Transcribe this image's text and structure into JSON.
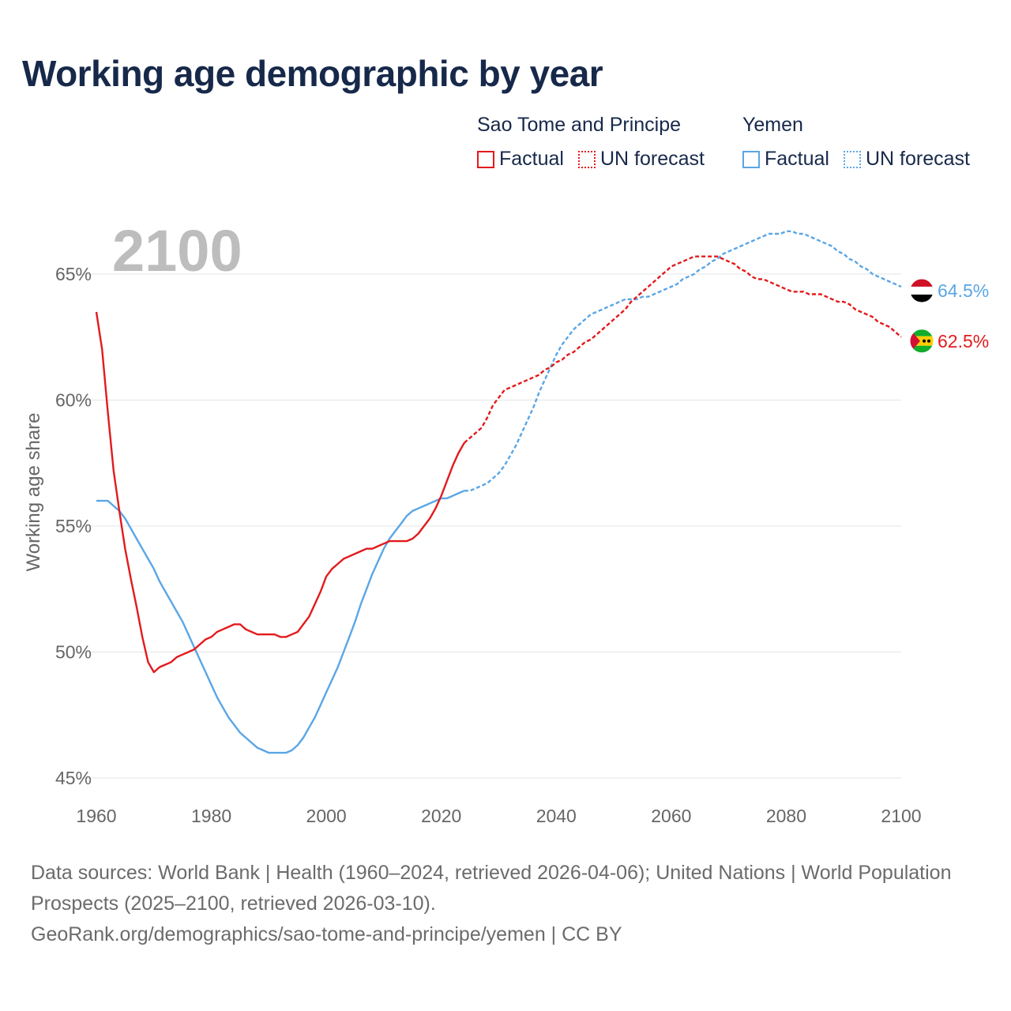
{
  "title": "Working age demographic by year",
  "legend": {
    "groups": [
      {
        "name": "Sao Tome and Principe",
        "factual_label": "Factual",
        "forecast_label": "UN forecast",
        "color": "#e31a1c"
      },
      {
        "name": "Yemen",
        "factual_label": "Factual",
        "forecast_label": "UN forecast",
        "color": "#5aa6e6"
      }
    ]
  },
  "footer": {
    "sources": "Data sources: World Bank | Health (1960–2024, retrieved 2026-04-06); United Nations | World Population Prospects (2025–2100, retrieved 2026-03-10).",
    "url": "GeoRank.org/demographics/sao-tome-and-principe/yemen | CC BY"
  },
  "chart_data": {
    "type": "line",
    "year_watermark": "2100",
    "ylabel": "Working age share",
    "xlabel": "",
    "xlim": [
      1960,
      2100
    ],
    "ylim": [
      45,
      67
    ],
    "x_ticks": [
      1960,
      1980,
      2000,
      2020,
      2040,
      2060,
      2080,
      2100
    ],
    "y_ticks": [
      45,
      50,
      55,
      60,
      65
    ],
    "y_tick_labels": [
      "45%",
      "50%",
      "55%",
      "60%",
      "65%"
    ],
    "grid": true,
    "forecast_start": 2024,
    "series": [
      {
        "name": "Sao Tome and Principe",
        "color": "#e31a1c",
        "end_label": "62.5%",
        "flag": "sao-tome-flag-icon",
        "points": [
          [
            1960,
            63.5
          ],
          [
            1961,
            62.0
          ],
          [
            1962,
            59.5
          ],
          [
            1963,
            57.2
          ],
          [
            1964,
            55.6
          ],
          [
            1965,
            54.1
          ],
          [
            1966,
            52.9
          ],
          [
            1967,
            51.8
          ],
          [
            1968,
            50.6
          ],
          [
            1969,
            49.6
          ],
          [
            1970,
            49.2
          ],
          [
            1971,
            49.4
          ],
          [
            1972,
            49.5
          ],
          [
            1973,
            49.6
          ],
          [
            1974,
            49.8
          ],
          [
            1975,
            49.9
          ],
          [
            1976,
            50.0
          ],
          [
            1977,
            50.1
          ],
          [
            1978,
            50.3
          ],
          [
            1979,
            50.5
          ],
          [
            1980,
            50.6
          ],
          [
            1981,
            50.8
          ],
          [
            1982,
            50.9
          ],
          [
            1983,
            51.0
          ],
          [
            1984,
            51.1
          ],
          [
            1985,
            51.1
          ],
          [
            1986,
            50.9
          ],
          [
            1987,
            50.8
          ],
          [
            1988,
            50.7
          ],
          [
            1989,
            50.7
          ],
          [
            1990,
            50.7
          ],
          [
            1991,
            50.7
          ],
          [
            1992,
            50.6
          ],
          [
            1993,
            50.6
          ],
          [
            1994,
            50.7
          ],
          [
            1995,
            50.8
          ],
          [
            1996,
            51.1
          ],
          [
            1997,
            51.4
          ],
          [
            1998,
            51.9
          ],
          [
            1999,
            52.4
          ],
          [
            2000,
            53.0
          ],
          [
            2001,
            53.3
          ],
          [
            2002,
            53.5
          ],
          [
            2003,
            53.7
          ],
          [
            2004,
            53.8
          ],
          [
            2005,
            53.9
          ],
          [
            2006,
            54.0
          ],
          [
            2007,
            54.1
          ],
          [
            2008,
            54.1
          ],
          [
            2009,
            54.2
          ],
          [
            2010,
            54.3
          ],
          [
            2011,
            54.4
          ],
          [
            2012,
            54.4
          ],
          [
            2013,
            54.4
          ],
          [
            2014,
            54.4
          ],
          [
            2015,
            54.5
          ],
          [
            2016,
            54.7
          ],
          [
            2017,
            55.0
          ],
          [
            2018,
            55.3
          ],
          [
            2019,
            55.7
          ],
          [
            2020,
            56.2
          ],
          [
            2021,
            56.8
          ],
          [
            2022,
            57.4
          ],
          [
            2023,
            57.9
          ],
          [
            2024,
            58.3
          ],
          [
            2025,
            58.5
          ],
          [
            2026,
            58.7
          ],
          [
            2027,
            58.9
          ],
          [
            2028,
            59.3
          ],
          [
            2029,
            59.8
          ],
          [
            2030,
            60.1
          ],
          [
            2031,
            60.4
          ],
          [
            2032,
            60.5
          ],
          [
            2033,
            60.6
          ],
          [
            2034,
            60.7
          ],
          [
            2035,
            60.8
          ],
          [
            2036,
            60.9
          ],
          [
            2037,
            61.0
          ],
          [
            2038,
            61.2
          ],
          [
            2039,
            61.3
          ],
          [
            2040,
            61.5
          ],
          [
            2041,
            61.6
          ],
          [
            2042,
            61.8
          ],
          [
            2043,
            61.9
          ],
          [
            2044,
            62.1
          ],
          [
            2045,
            62.3
          ],
          [
            2046,
            62.4
          ],
          [
            2047,
            62.6
          ],
          [
            2048,
            62.8
          ],
          [
            2049,
            63.0
          ],
          [
            2050,
            63.2
          ],
          [
            2051,
            63.4
          ],
          [
            2052,
            63.6
          ],
          [
            2053,
            63.9
          ],
          [
            2054,
            64.1
          ],
          [
            2055,
            64.3
          ],
          [
            2056,
            64.5
          ],
          [
            2057,
            64.7
          ],
          [
            2058,
            64.9
          ],
          [
            2059,
            65.1
          ],
          [
            2060,
            65.3
          ],
          [
            2061,
            65.4
          ],
          [
            2062,
            65.5
          ],
          [
            2063,
            65.6
          ],
          [
            2064,
            65.7
          ],
          [
            2065,
            65.7
          ],
          [
            2066,
            65.7
          ],
          [
            2067,
            65.7
          ],
          [
            2068,
            65.7
          ],
          [
            2069,
            65.6
          ],
          [
            2070,
            65.5
          ],
          [
            2071,
            65.4
          ],
          [
            2072,
            65.2
          ],
          [
            2073,
            65.1
          ],
          [
            2074,
            64.9
          ],
          [
            2075,
            64.8
          ],
          [
            2076,
            64.8
          ],
          [
            2077,
            64.7
          ],
          [
            2078,
            64.6
          ],
          [
            2079,
            64.5
          ],
          [
            2080,
            64.4
          ],
          [
            2081,
            64.3
          ],
          [
            2082,
            64.3
          ],
          [
            2083,
            64.3
          ],
          [
            2084,
            64.2
          ],
          [
            2085,
            64.2
          ],
          [
            2086,
            64.2
          ],
          [
            2087,
            64.1
          ],
          [
            2088,
            64.0
          ],
          [
            2089,
            63.9
          ],
          [
            2090,
            63.9
          ],
          [
            2091,
            63.8
          ],
          [
            2092,
            63.6
          ],
          [
            2093,
            63.5
          ],
          [
            2094,
            63.4
          ],
          [
            2095,
            63.3
          ],
          [
            2096,
            63.1
          ],
          [
            2097,
            63.0
          ],
          [
            2098,
            62.9
          ],
          [
            2099,
            62.7
          ],
          [
            2100,
            62.5
          ]
        ]
      },
      {
        "name": "Yemen",
        "color": "#5aa6e6",
        "end_label": "64.5%",
        "flag": "yemen-flag-icon",
        "points": [
          [
            1960,
            56.0
          ],
          [
            1961,
            56.0
          ],
          [
            1962,
            56.0
          ],
          [
            1963,
            55.8
          ],
          [
            1964,
            55.6
          ],
          [
            1965,
            55.3
          ],
          [
            1966,
            54.9
          ],
          [
            1967,
            54.5
          ],
          [
            1968,
            54.1
          ],
          [
            1969,
            53.7
          ],
          [
            1970,
            53.3
          ],
          [
            1971,
            52.8
          ],
          [
            1972,
            52.4
          ],
          [
            1973,
            52.0
          ],
          [
            1974,
            51.6
          ],
          [
            1975,
            51.2
          ],
          [
            1976,
            50.7
          ],
          [
            1977,
            50.2
          ],
          [
            1978,
            49.7
          ],
          [
            1979,
            49.2
          ],
          [
            1980,
            48.7
          ],
          [
            1981,
            48.2
          ],
          [
            1982,
            47.8
          ],
          [
            1983,
            47.4
          ],
          [
            1984,
            47.1
          ],
          [
            1985,
            46.8
          ],
          [
            1986,
            46.6
          ],
          [
            1987,
            46.4
          ],
          [
            1988,
            46.2
          ],
          [
            1989,
            46.1
          ],
          [
            1990,
            46.0
          ],
          [
            1991,
            46.0
          ],
          [
            1992,
            46.0
          ],
          [
            1993,
            46.0
          ],
          [
            1994,
            46.1
          ],
          [
            1995,
            46.3
          ],
          [
            1996,
            46.6
          ],
          [
            1997,
            47.0
          ],
          [
            1998,
            47.4
          ],
          [
            1999,
            47.9
          ],
          [
            2000,
            48.4
          ],
          [
            2001,
            48.9
          ],
          [
            2002,
            49.4
          ],
          [
            2003,
            50.0
          ],
          [
            2004,
            50.6
          ],
          [
            2005,
            51.2
          ],
          [
            2006,
            51.9
          ],
          [
            2007,
            52.5
          ],
          [
            2008,
            53.1
          ],
          [
            2009,
            53.6
          ],
          [
            2010,
            54.1
          ],
          [
            2011,
            54.5
          ],
          [
            2012,
            54.8
          ],
          [
            2013,
            55.1
          ],
          [
            2014,
            55.4
          ],
          [
            2015,
            55.6
          ],
          [
            2016,
            55.7
          ],
          [
            2017,
            55.8
          ],
          [
            2018,
            55.9
          ],
          [
            2019,
            56.0
          ],
          [
            2020,
            56.1
          ],
          [
            2021,
            56.1
          ],
          [
            2022,
            56.2
          ],
          [
            2023,
            56.3
          ],
          [
            2024,
            56.4
          ],
          [
            2025,
            56.4
          ],
          [
            2026,
            56.5
          ],
          [
            2027,
            56.6
          ],
          [
            2028,
            56.7
          ],
          [
            2029,
            56.9
          ],
          [
            2030,
            57.1
          ],
          [
            2031,
            57.4
          ],
          [
            2032,
            57.8
          ],
          [
            2033,
            58.2
          ],
          [
            2034,
            58.7
          ],
          [
            2035,
            59.2
          ],
          [
            2036,
            59.7
          ],
          [
            2037,
            60.3
          ],
          [
            2038,
            60.8
          ],
          [
            2039,
            61.3
          ],
          [
            2040,
            61.8
          ],
          [
            2041,
            62.2
          ],
          [
            2042,
            62.5
          ],
          [
            2043,
            62.8
          ],
          [
            2044,
            63.0
          ],
          [
            2045,
            63.2
          ],
          [
            2046,
            63.4
          ],
          [
            2047,
            63.5
          ],
          [
            2048,
            63.6
          ],
          [
            2049,
            63.7
          ],
          [
            2050,
            63.8
          ],
          [
            2051,
            63.9
          ],
          [
            2052,
            64.0
          ],
          [
            2053,
            64.0
          ],
          [
            2054,
            64.0
          ],
          [
            2055,
            64.1
          ],
          [
            2056,
            64.1
          ],
          [
            2057,
            64.2
          ],
          [
            2058,
            64.3
          ],
          [
            2059,
            64.4
          ],
          [
            2060,
            64.5
          ],
          [
            2061,
            64.6
          ],
          [
            2062,
            64.8
          ],
          [
            2063,
            64.9
          ],
          [
            2064,
            65.0
          ],
          [
            2065,
            65.2
          ],
          [
            2066,
            65.3
          ],
          [
            2067,
            65.5
          ],
          [
            2068,
            65.6
          ],
          [
            2069,
            65.8
          ],
          [
            2070,
            65.9
          ],
          [
            2071,
            66.0
          ],
          [
            2072,
            66.1
          ],
          [
            2073,
            66.2
          ],
          [
            2074,
            66.3
          ],
          [
            2075,
            66.4
          ],
          [
            2076,
            66.5
          ],
          [
            2077,
            66.6
          ],
          [
            2078,
            66.6
          ],
          [
            2079,
            66.6
          ],
          [
            2080,
            66.7
          ],
          [
            2081,
            66.7
          ],
          [
            2082,
            66.6
          ],
          [
            2083,
            66.6
          ],
          [
            2084,
            66.5
          ],
          [
            2085,
            66.4
          ],
          [
            2086,
            66.3
          ],
          [
            2087,
            66.2
          ],
          [
            2088,
            66.1
          ],
          [
            2089,
            65.9
          ],
          [
            2090,
            65.8
          ],
          [
            2091,
            65.6
          ],
          [
            2092,
            65.5
          ],
          [
            2093,
            65.3
          ],
          [
            2094,
            65.2
          ],
          [
            2095,
            65.0
          ],
          [
            2096,
            64.9
          ],
          [
            2097,
            64.8
          ],
          [
            2098,
            64.7
          ],
          [
            2099,
            64.6
          ],
          [
            2100,
            64.5
          ]
        ]
      }
    ]
  }
}
